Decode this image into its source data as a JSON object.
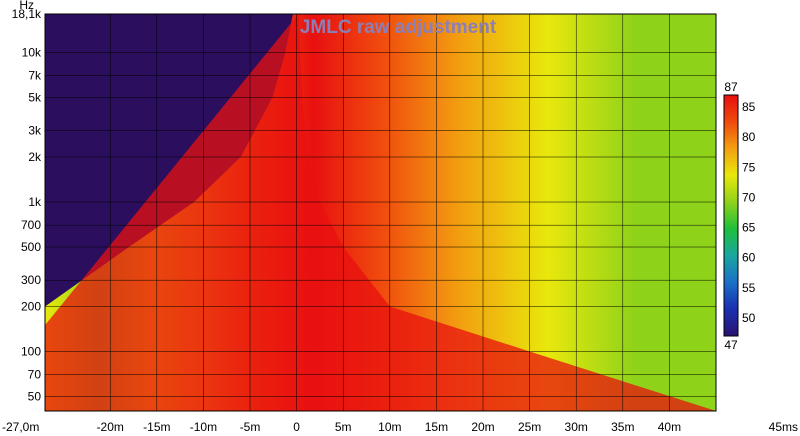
{
  "chart_data": {
    "type": "heatmap",
    "title": "JMLC raw adjustment",
    "xlabel": "ms",
    "ylabel": "Hz",
    "xlim": [
      -27,
      45
    ],
    "ylim": [
      40,
      18100
    ],
    "yscale": "log",
    "grid": true,
    "x_ticks": [
      {
        "value": -27,
        "label": "-27,0m"
      },
      {
        "value": -20,
        "label": "-20m"
      },
      {
        "value": -15,
        "label": "-15m"
      },
      {
        "value": -10,
        "label": "-10m"
      },
      {
        "value": -5,
        "label": "-5m"
      },
      {
        "value": 0,
        "label": "0"
      },
      {
        "value": 5,
        "label": "5m"
      },
      {
        "value": 10,
        "label": "10m"
      },
      {
        "value": 15,
        "label": "15m"
      },
      {
        "value": 20,
        "label": "20m"
      },
      {
        "value": 25,
        "label": "25m"
      },
      {
        "value": 30,
        "label": "30m"
      },
      {
        "value": 35,
        "label": "35m"
      },
      {
        "value": 40,
        "label": "40m"
      },
      {
        "value": 45,
        "label": "45ms"
      }
    ],
    "y_ticks": [
      {
        "value": 18100,
        "label": "18,1k"
      },
      {
        "value": 10000,
        "label": "10k"
      },
      {
        "value": 7000,
        "label": "7k"
      },
      {
        "value": 5000,
        "label": "5k"
      },
      {
        "value": 3000,
        "label": "3k"
      },
      {
        "value": 2000,
        "label": "2k"
      },
      {
        "value": 1000,
        "label": "1k"
      },
      {
        "value": 700,
        "label": "700"
      },
      {
        "value": 500,
        "label": "500"
      },
      {
        "value": 300,
        "label": "300"
      },
      {
        "value": 200,
        "label": "200"
      },
      {
        "value": 100,
        "label": "100"
      },
      {
        "value": 70,
        "label": "70"
      },
      {
        "value": 50,
        "label": "50"
      }
    ],
    "colorbar": {
      "min": 47,
      "max": 87,
      "ticks": [
        {
          "value": 87,
          "label": "87"
        },
        {
          "value": 85,
          "label": "85"
        },
        {
          "value": 80,
          "label": "80"
        },
        {
          "value": 75,
          "label": "75"
        },
        {
          "value": 70,
          "label": "70"
        },
        {
          "value": 65,
          "label": "65"
        },
        {
          "value": 60,
          "label": "60"
        },
        {
          "value": 55,
          "label": "55"
        },
        {
          "value": 50,
          "label": "50"
        },
        {
          "value": 47,
          "label": "47"
        }
      ],
      "colors": [
        "#2a1470",
        "#1a2fb0",
        "#1b6fc8",
        "#18a7a0",
        "#1fbf3c",
        "#8fd21a",
        "#e8e80c",
        "#f2a010",
        "#f04a0e",
        "#e81010"
      ]
    },
    "background_color": "#2b0f5e"
  }
}
